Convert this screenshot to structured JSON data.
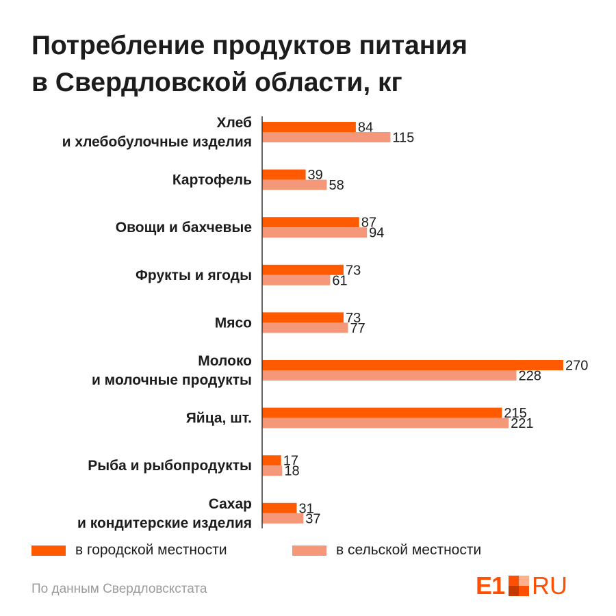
{
  "title_lines": [
    "Потребление продуктов питания",
    "в Свердловской области, кг"
  ],
  "colors": {
    "urban": "#ff5a00",
    "rural": "#f5987a",
    "axis": "#333333"
  },
  "chart_data": {
    "type": "bar",
    "orientation": "horizontal",
    "categories": [
      [
        "Хлеб",
        "и хлебобулочные изделия"
      ],
      [
        "Картофель"
      ],
      [
        "Овощи и бахчевые"
      ],
      [
        "Фрукты и ягоды"
      ],
      [
        "Мясо"
      ],
      [
        "Молоко",
        "и молочные продукты"
      ],
      [
        "Яйца, шт."
      ],
      [
        "Рыба и рыбопродукты"
      ],
      [
        "Сахар",
        "и кондитерские изделия"
      ]
    ],
    "series": [
      {
        "name": "в городской местности",
        "values": [
          84,
          39,
          87,
          73,
          73,
          270,
          215,
          17,
          31
        ]
      },
      {
        "name": "в сельской местности",
        "values": [
          115,
          58,
          94,
          61,
          77,
          228,
          221,
          18,
          37
        ]
      }
    ],
    "xlim": [
      0,
      270
    ],
    "grid": false,
    "legend_position": "bottom"
  },
  "legend": {
    "urban": "в городской местности",
    "rural": "в сельской местности"
  },
  "source": "По данным Свердловскстата",
  "logo": {
    "left": "E1",
    "right": "RU"
  }
}
